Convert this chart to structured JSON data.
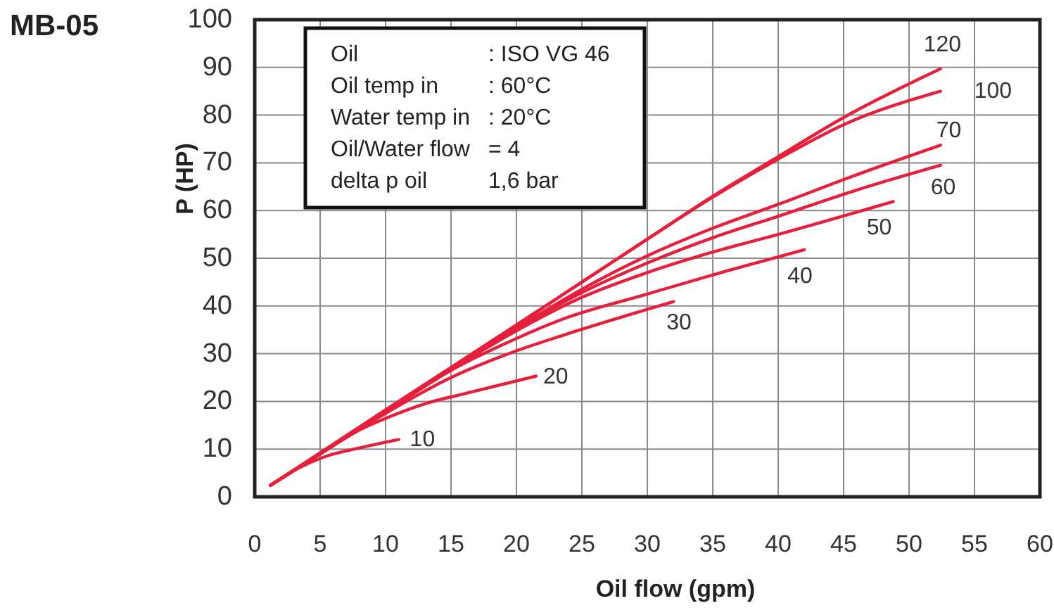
{
  "chart_data": {
    "type": "line",
    "title": "MB-05",
    "xlabel": "Oil flow (gpm)",
    "ylabel": "P (HP)",
    "xlim": [
      0,
      60
    ],
    "ylim": [
      0,
      100
    ],
    "xticks": [
      0,
      5,
      10,
      15,
      20,
      25,
      30,
      35,
      40,
      45,
      50,
      55,
      60
    ],
    "yticks": [
      0,
      10,
      20,
      30,
      40,
      50,
      60,
      70,
      80,
      90,
      100
    ],
    "grid": true,
    "annotations": [
      "Oil",
      ": ISO VG 46",
      "Oil temp in",
      ": 60°C",
      "Water temp in",
      ": 20°C",
      "Oil/Water flow",
      "= 4",
      "delta p oil",
      "1,6 bar"
    ],
    "series": [
      {
        "name": "10",
        "color": "#e4203c",
        "x": [
          1.2,
          3,
          5.25,
          8.1,
          11
        ],
        "values": [
          2.4,
          5.5,
          8.3,
          10.3,
          12
        ]
      },
      {
        "name": "20",
        "color": "#e4203c",
        "x": [
          1.2,
          5,
          8,
          10.5,
          13,
          16,
          21.5
        ],
        "values": [
          2.4,
          9,
          14,
          17,
          19.5,
          21.6,
          25.3
        ]
      },
      {
        "name": "30",
        "color": "#e4203c",
        "x": [
          1.2,
          5,
          10,
          15,
          20,
          23.5,
          32
        ],
        "values": [
          2.4,
          9,
          17.5,
          25,
          30.6,
          33.8,
          40.9
        ]
      },
      {
        "name": "40",
        "color": "#e4203c",
        "x": [
          1.2,
          5,
          10,
          15,
          20,
          23.5,
          30,
          36,
          42
        ],
        "values": [
          2.4,
          9,
          17.8,
          26.5,
          33.2,
          37.2,
          42.5,
          47.3,
          51.8
        ]
      },
      {
        "name": "50",
        "color": "#e4203c",
        "x": [
          1.2,
          5,
          10,
          15,
          20,
          25,
          30,
          35,
          40,
          48.8
        ],
        "values": [
          2.4,
          9,
          17.9,
          26.7,
          34.8,
          41.8,
          47,
          51.3,
          55,
          61.9
        ]
      },
      {
        "name": "60",
        "color": "#e4203c",
        "x": [
          1.2,
          5,
          10,
          15,
          20,
          25,
          30,
          35,
          40,
          46,
          52.4
        ],
        "values": [
          2.4,
          9,
          18,
          26.8,
          35.2,
          42.8,
          49,
          54.3,
          58.8,
          64.3,
          69.5
        ]
      },
      {
        "name": "70",
        "color": "#e4203c",
        "x": [
          1.2,
          5,
          10,
          15,
          20,
          25,
          30,
          35,
          40,
          46,
          52.4
        ],
        "values": [
          2.4,
          9.1,
          18.1,
          26.9,
          35.4,
          43.5,
          50.5,
          56.3,
          61.3,
          67.5,
          73.7
        ]
      },
      {
        "name": "100",
        "color": "#e4203c",
        "x": [
          1.2,
          5,
          10,
          15,
          20,
          25,
          30,
          35,
          40,
          45,
          52.4
        ],
        "values": [
          2.4,
          9.2,
          18.2,
          27.1,
          36,
          45,
          54,
          62.8,
          70.8,
          78,
          85
        ]
      },
      {
        "name": "120",
        "color": "#e4203c",
        "x": [
          1.2,
          5,
          10,
          15,
          20,
          25,
          30,
          35,
          40,
          45,
          52.4
        ],
        "values": [
          2.4,
          9.2,
          18.2,
          27.1,
          36,
          45,
          54,
          63,
          71.3,
          79.5,
          89.7
        ]
      }
    ]
  }
}
